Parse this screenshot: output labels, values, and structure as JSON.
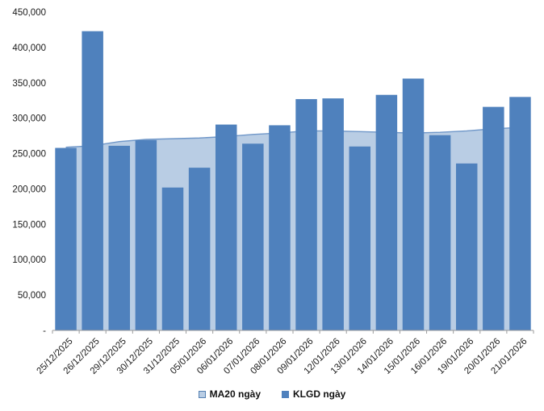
{
  "chart_data": {
    "type": "combo",
    "categories": [
      "25/12/2025",
      "26/12/2025",
      "29/12/2025",
      "30/12/2025",
      "31/12/2025",
      "05/01/2026",
      "06/01/2026",
      "07/01/2026",
      "08/01/2026",
      "09/01/2026",
      "12/01/2026",
      "13/01/2026",
      "14/01/2026",
      "15/01/2026",
      "16/01/2026",
      "19/01/2026",
      "20/01/2026",
      "21/01/2026"
    ],
    "series": [
      {
        "name": "MA20 ngày",
        "type": "area",
        "values": [
          259000,
          261000,
          267000,
          270000,
          271000,
          272000,
          274000,
          277000,
          279000,
          282000,
          282000,
          281000,
          280000,
          279000,
          280000,
          282000,
          285000,
          287000
        ]
      },
      {
        "name": "KLGD ngày",
        "type": "bar",
        "values": [
          258000,
          423000,
          261000,
          269000,
          202000,
          230000,
          291000,
          264000,
          290000,
          327000,
          328000,
          260000,
          333000,
          356000,
          276000,
          236000,
          316000,
          330000
        ]
      }
    ],
    "title": "",
    "xlabel": "",
    "ylabel": "",
    "ylim": [
      0,
      450000
    ],
    "y_ticks": [
      {
        "value": 0,
        "label": "-"
      },
      {
        "value": 50000,
        "label": "50,000"
      },
      {
        "value": 100000,
        "label": "100,000"
      },
      {
        "value": 150000,
        "label": "150,000"
      },
      {
        "value": 200000,
        "label": "200,000"
      },
      {
        "value": 250000,
        "label": "250,000"
      },
      {
        "value": 300000,
        "label": "300,000"
      },
      {
        "value": 350000,
        "label": "350,000"
      },
      {
        "value": 400000,
        "label": "400,000"
      },
      {
        "value": 450000,
        "label": "450,000"
      }
    ],
    "grid": false,
    "legend_position": "bottom-center",
    "colors": {
      "bar_fill": "#4F81BD",
      "area_fill": "#B9CDE4",
      "area_line": "#6E96C8",
      "axis_line": "#9B9B9B",
      "tick_mark": "#9B9B9B",
      "label_text": "#1A1A1A"
    }
  }
}
